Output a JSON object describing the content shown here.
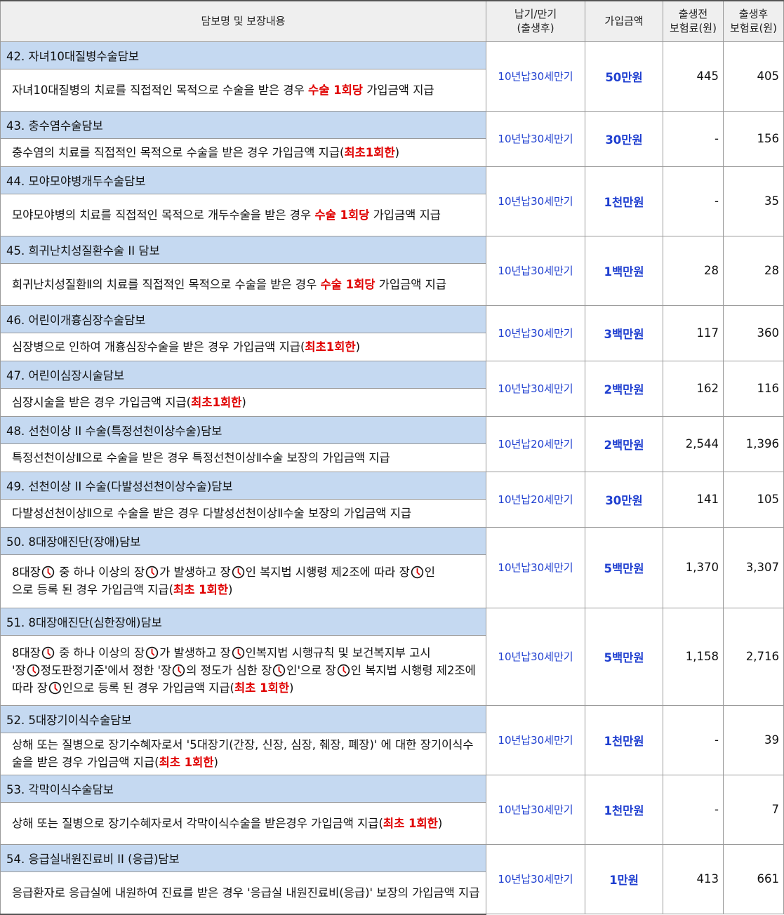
{
  "header": {
    "col_name": "담보명 및 보장내용",
    "col_term": "납기/만기\n(출생후)",
    "col_amount": "가입금액",
    "col_prem_before": "출생전\n보험료(원)",
    "col_prem_after": "출생후\n보험료(원)"
  },
  "rows": [
    {
      "title": "42.  자녀10대질병수술담보",
      "desc": [
        [
          "자녀10대질병의 치료를 직접적인 목적으로 수술을 받은 경우 ",
          "n"
        ],
        [
          "수술 1회당",
          "r"
        ],
        [
          " 가입금액 지급",
          "n"
        ]
      ],
      "term": "10년납30세만기",
      "amount": "50만원",
      "before": "445",
      "after": "405"
    },
    {
      "title": "43.  충수염수술담보",
      "desc": [
        [
          "충수염의 치료를 직접적인 목적으로 수술을 받은 경우 가입금액 지급(",
          "n"
        ],
        [
          "최초1회한",
          "r"
        ],
        [
          ")",
          "n"
        ]
      ],
      "term": "10년납30세만기",
      "amount": "30만원",
      "before": "-",
      "after": "156"
    },
    {
      "title": "44.  모야모야병개두수술담보",
      "desc": [
        [
          "모야모야병의 치료를 직접적인 목적으로 개두수술을 받은 경우 ",
          "n"
        ],
        [
          "수술 1회당",
          "r"
        ],
        [
          " 가입금액 지급",
          "n"
        ]
      ],
      "term": "10년납30세만기",
      "amount": "1천만원",
      "before": "-",
      "after": "35"
    },
    {
      "title": "45.  희귀난치성질환수술 II 담보",
      "desc": [
        [
          "희귀난치성질환Ⅱ의 치료를 직접적인 목적으로 수술을 받은 경우 ",
          "n"
        ],
        [
          "수술 1회당",
          "r"
        ],
        [
          " 가입금액 지급",
          "n"
        ]
      ],
      "term": "10년납30세만기",
      "amount": "1백만원",
      "before": "28",
      "after": "28"
    },
    {
      "title": "46.  어린이개흉심장수술담보",
      "desc": [
        [
          "심장병으로 인하여 개흉심장수술을 받은 경우 가입금액 지급(",
          "n"
        ],
        [
          "최초1회한",
          "r"
        ],
        [
          ")",
          "n"
        ]
      ],
      "term": "10년납30세만기",
      "amount": "3백만원",
      "before": "117",
      "after": "360"
    },
    {
      "title": "47.  어린이심장시술담보",
      "desc": [
        [
          "심장시술을 받은 경우 가입금액 지급(",
          "n"
        ],
        [
          "최초1회한",
          "r"
        ],
        [
          ")",
          "n"
        ]
      ],
      "term": "10년납30세만기",
      "amount": "2백만원",
      "before": "162",
      "after": "116"
    },
    {
      "title": "48.  선천이상 II 수술(특정선천이상수술)담보",
      "desc": [
        [
          "특정선천이상Ⅱ으로 수술을 받은 경우 특정선천이상Ⅱ수술 보장의 가입금액 지급",
          "n"
        ]
      ],
      "term": "10년납20세만기",
      "amount": "2백만원",
      "before": "2,544",
      "after": "1,396"
    },
    {
      "title": "49.  선천이상 II 수술(다발성선천이상수술)담보",
      "desc": [
        [
          "다발성선천이상Ⅱ으로 수술을 받은 경우 다발성선천이상Ⅱ수술 보장의 가입금액 지급",
          "n"
        ]
      ],
      "term": "10년납20세만기",
      "amount": "30만원",
      "before": "141",
      "after": "105"
    },
    {
      "title": "50.  8대장애진단(장애)담보",
      "desc": [
        [
          "8대장",
          "n"
        ],
        [
          "",
          "c"
        ],
        " 중 하나 이상의 장",
        [
          "",
          "c"
        ],
        [
          "가 발생하고 장",
          "n"
        ],
        [
          "",
          "c"
        ],
        [
          "인 복지법 시행령 제2조에 따라 장",
          "n"
        ],
        [
          "",
          "c"
        ],
        [
          "인",
          "n"
        ],
        [
          "",
          "br"
        ],
        [
          "으로 등록 된 경우 가입금액 지급(",
          "n"
        ],
        [
          "최초 1회한",
          "r"
        ],
        [
          ")",
          "n"
        ]
      ],
      "term": "10년납30세만기",
      "amount": "5백만원",
      "before": "1,370",
      "after": "3,307"
    },
    {
      "title": "51.  8대장애진단(심한장애)담보",
      "desc": [
        [
          "8대장",
          "n"
        ],
        [
          "",
          "c"
        ],
        [
          " 중 하나 이상의 장",
          "n"
        ],
        [
          "",
          "c"
        ],
        [
          "가 발생하고 장",
          "n"
        ],
        [
          "",
          "c"
        ],
        [
          "인복지법 시행규칙 및 보건복지부 고시",
          "n"
        ],
        [
          "",
          "br"
        ],
        [
          "'장",
          "n"
        ],
        [
          "",
          "c"
        ],
        [
          "정도판정기준'에서 정한  '장",
          "n"
        ],
        [
          "",
          "c"
        ],
        [
          "의 정도가 심한 장",
          "n"
        ],
        [
          "",
          "c"
        ],
        [
          "인'으로 장",
          "n"
        ],
        [
          "",
          "c"
        ],
        [
          "인 복지법 시행령 제2조에 따라 장",
          "n"
        ],
        [
          "",
          "c"
        ],
        [
          "인으로 등록 된 경우 가입금액 지급(",
          "n"
        ],
        [
          "최초 1회한",
          "r"
        ],
        [
          ")",
          "n"
        ]
      ],
      "term": "10년납30세만기",
      "amount": "5백만원",
      "before": "1,158",
      "after": "2,716"
    },
    {
      "title": "52.  5대장기이식수술담보",
      "desc": [
        [
          "상해 또는 질병으로 장기수혜자로서  '5대장기(간장, 신장, 심장, 췌장, 폐장)' 에 대한 장기이식수술을 받은 경우 가입금액 지급(",
          "n"
        ],
        [
          "최초 1회한",
          "r"
        ],
        [
          ")",
          "n"
        ]
      ],
      "term": "10년납30세만기",
      "amount": "1천만원",
      "before": "-",
      "after": "39"
    },
    {
      "title": "53.  각막이식수술담보",
      "desc": [
        [
          "상해 또는 질병으로 장기수혜자로서 각막이식수술을 받은경우 가입금액 지급(",
          "n"
        ],
        [
          "최초 1회한",
          "r"
        ],
        [
          ")",
          "n"
        ]
      ],
      "term": "10년납30세만기",
      "amount": "1천만원",
      "before": "-",
      "after": "7"
    },
    {
      "title": "54.  응급실내원진료비 II (응급)담보",
      "desc": [
        [
          "응급환자로 응급실에 내원하여 진료를 받은 경우 '응급실 내원진료비(응급)' 보장의 가입금액 지급",
          "n"
        ]
      ],
      "term": "10년납30세만기",
      "amount": "1만원",
      "before": "413",
      "after": "661"
    }
  ],
  "colors": {
    "title_bg": "#c5d9f1",
    "accent_red": "#e00000",
    "accent_blue": "#1f3fd0"
  },
  "icons": {
    "inline_glyph": "clock-icon"
  }
}
